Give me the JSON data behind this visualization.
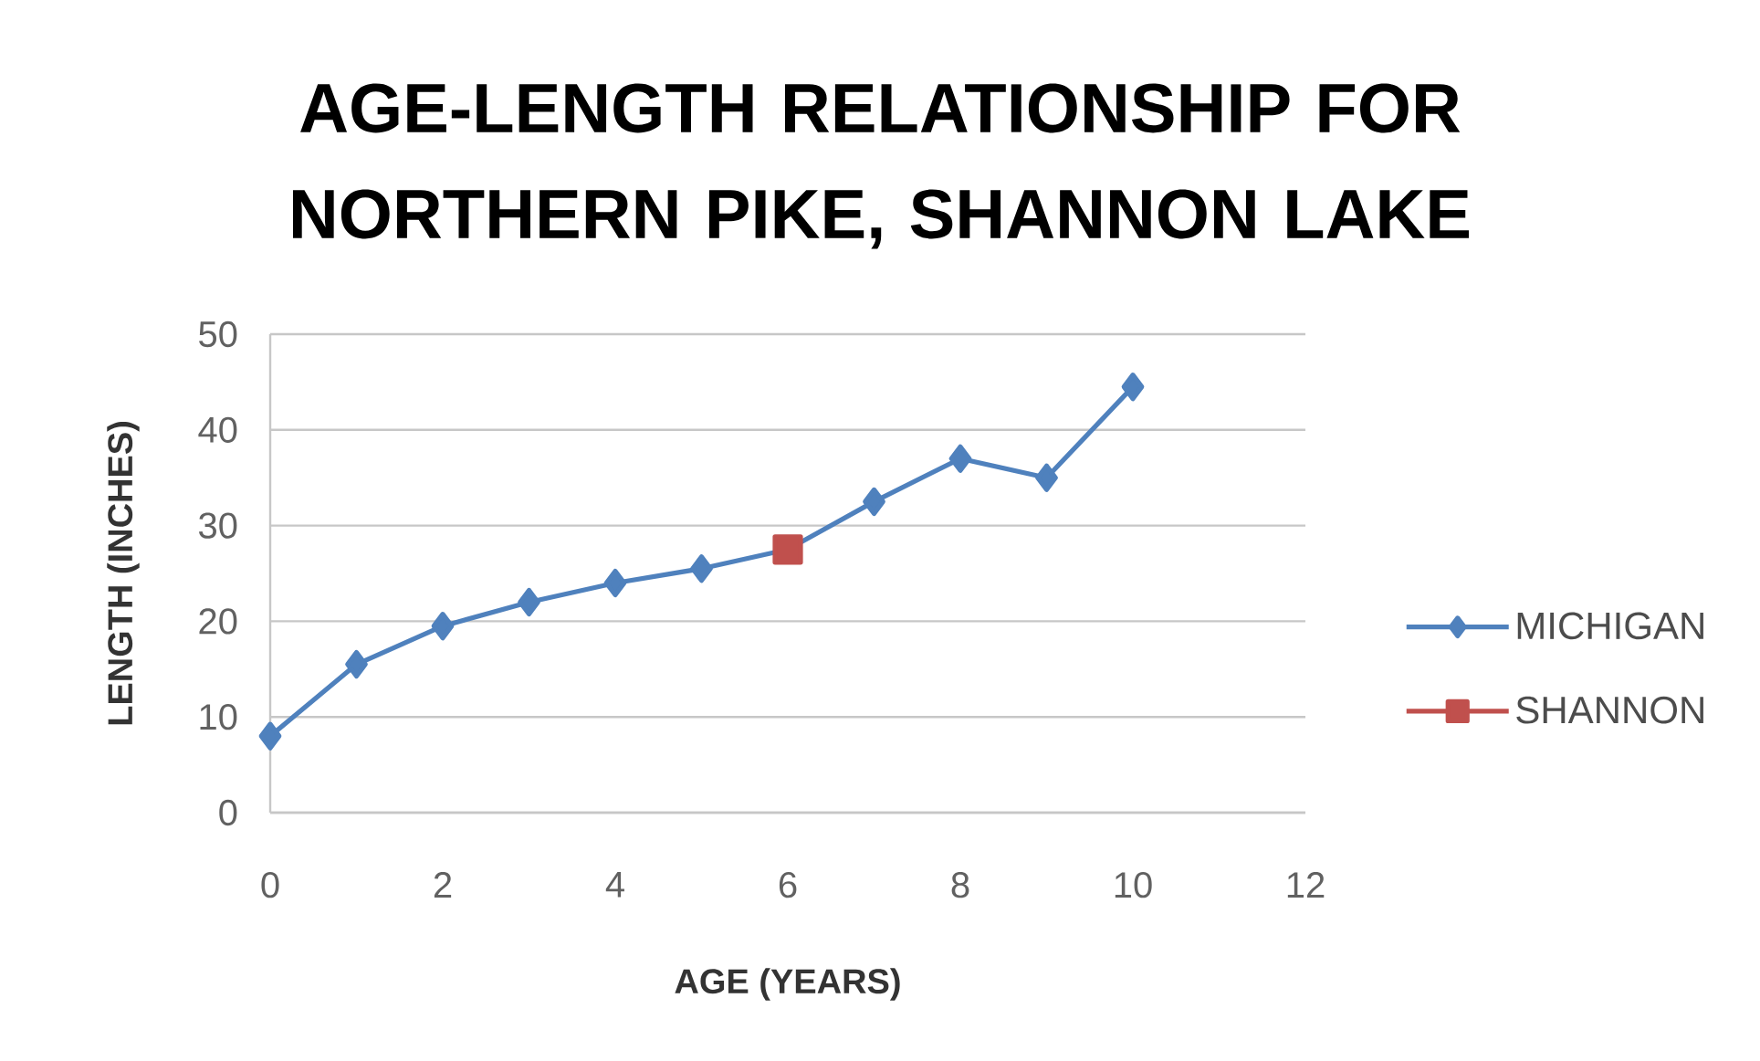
{
  "chart_data": {
    "type": "line",
    "title": "AGE-LENGTH RELATIONSHIP FOR NORTHERN PIKE, SHANNON LAKE",
    "xlabel": "AGE (YEARS)",
    "ylabel": "LENGTH (INCHES)",
    "x": [
      0,
      1,
      2,
      3,
      4,
      5,
      6,
      7,
      8,
      9,
      10
    ],
    "series": [
      {
        "name": "MICHIGAN",
        "color": "#4f81bd",
        "marker": "diamond",
        "values": [
          8,
          15.5,
          19.5,
          22,
          24,
          25.5,
          27.5,
          32.5,
          37,
          35,
          44.5
        ]
      },
      {
        "name": "SHANNON",
        "color": "#c0504d",
        "marker": "square",
        "x": [
          6
        ],
        "values": [
          27.5
        ]
      }
    ],
    "xlim": [
      0,
      12
    ],
    "xticks": [
      0,
      2,
      4,
      6,
      8,
      10,
      12
    ],
    "ylim": [
      0,
      50
    ],
    "yticks": [
      0,
      10,
      20,
      30,
      40,
      50
    ],
    "grid": "y",
    "legend": "right"
  }
}
